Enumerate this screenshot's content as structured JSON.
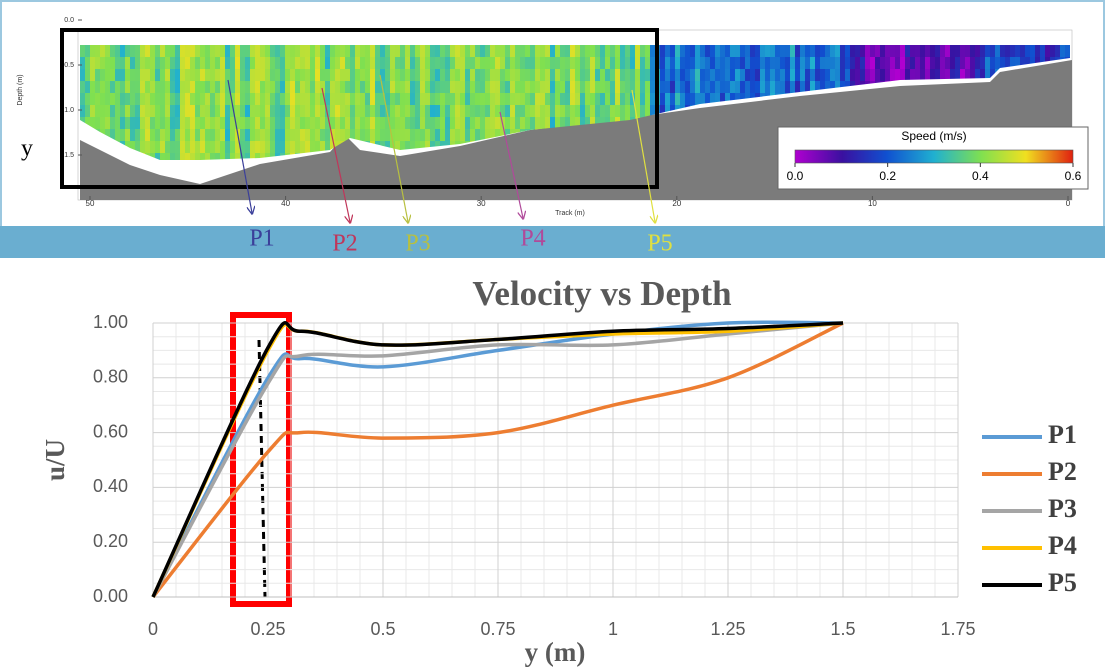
{
  "chart_data": [
    {
      "type": "image",
      "xlabel": "Track (m)",
      "ylabel": "Depth (m)",
      "side_label": "y",
      "xlim": [
        50,
        0
      ],
      "xticks": [
        50,
        40,
        30,
        20,
        10,
        0
      ],
      "ylim": [
        0,
        1.5
      ],
      "yticks": [
        {
          "value": 0,
          "label": "0.0"
        },
        {
          "value": 0.5,
          "label": "0.5"
        },
        {
          "value": 1,
          "label": "1.0"
        },
        {
          "value": 1.5,
          "label": "1.5"
        }
      ],
      "colorbar": {
        "label": "Speed (m/s)",
        "lim": [
          0,
          0.6
        ],
        "ticks": [
          {
            "value": 0,
            "label": "0.0"
          },
          {
            "value": 0.2,
            "label": "0.2"
          },
          {
            "value": 0.4,
            "label": "0.4"
          },
          {
            "value": 0.6,
            "label": "0.6"
          }
        ]
      },
      "annotations": [
        {
          "text": "P1",
          "color": "#3b3f9a"
        },
        {
          "text": "P2",
          "color": "#c0365a"
        },
        {
          "text": "P3",
          "color": "#b8c040"
        },
        {
          "text": "P4",
          "color": "#b04a9a"
        },
        {
          "text": "P5",
          "color": "#e0e040"
        }
      ]
    },
    {
      "type": "line",
      "title": "Velocity vs Depth",
      "xlabel": "y (m)",
      "ylabel": "u/U",
      "x": [
        0,
        0.25,
        0.32,
        0.5,
        0.75,
        1.0,
        1.25,
        1.5
      ],
      "series": [
        {
          "name": "P1",
          "color": "#5b9bd5",
          "values": [
            0,
            0.8,
            0.87,
            0.84,
            0.9,
            0.96,
            1.0,
            1.0
          ]
        },
        {
          "name": "P2",
          "color": "#ed7d31",
          "values": [
            0,
            0.53,
            0.6,
            0.58,
            0.6,
            0.7,
            0.8,
            1.0
          ]
        },
        {
          "name": "P3",
          "color": "#a5a5a5",
          "values": [
            0,
            0.78,
            0.88,
            0.88,
            0.92,
            0.92,
            0.96,
            1.0
          ]
        },
        {
          "name": "P4",
          "color": "#ffc000",
          "values": [
            0,
            0.9,
            0.97,
            0.92,
            0.94,
            0.96,
            0.97,
            1.0
          ]
        },
        {
          "name": "P5",
          "color": "#000000",
          "values": [
            0,
            0.91,
            0.97,
            0.92,
            0.94,
            0.97,
            0.98,
            1.0
          ]
        }
      ],
      "xlim": [
        0,
        1.75
      ],
      "xticks": [
        0,
        0.25,
        0.5,
        0.75,
        1,
        1.25,
        1.5,
        1.75
      ],
      "ylim": [
        0,
        1
      ],
      "yticks": [
        {
          "value": 0,
          "label": "0.00"
        },
        {
          "value": 0.2,
          "label": "0.20"
        },
        {
          "value": 0.4,
          "label": "0.40"
        },
        {
          "value": 0.6,
          "label": "0.60"
        },
        {
          "value": 0.8,
          "label": "0.80"
        },
        {
          "value": 1,
          "label": "1.00"
        }
      ],
      "grid": true,
      "legend": "right"
    }
  ]
}
